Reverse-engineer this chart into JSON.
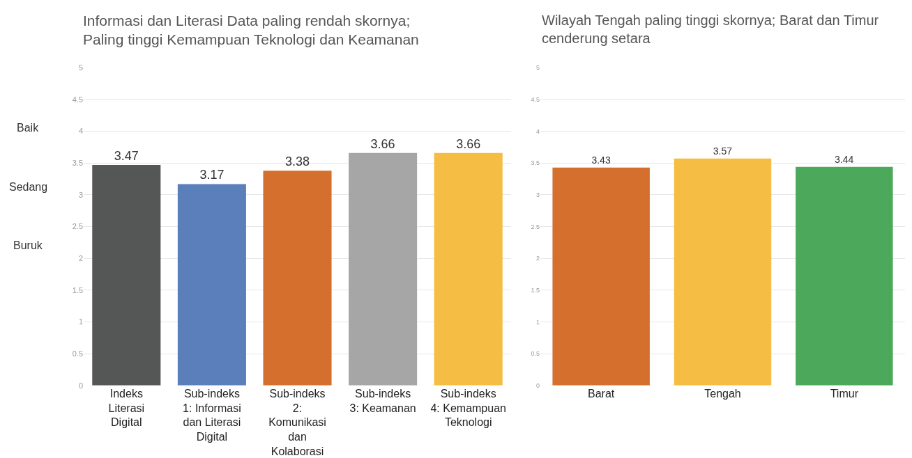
{
  "chart_data": [
    {
      "type": "bar",
      "title": "Informasi dan Literasi Data paling rendah skornya; Paling tinggi Kemampuan Teknologi dan Keamanan",
      "categories": [
        "Indeks Literasi Digital",
        "Sub-indeks 1: Informasi dan Literasi Digital",
        "Sub-indeks 2: Komunikasi dan Kolaborasi",
        "Sub-indeks 3: Keamanan",
        "Sub-indeks 4: Kemampuan Teknologi"
      ],
      "values": [
        3.47,
        3.17,
        3.38,
        3.66,
        3.66
      ],
      "colors": [
        "#555756",
        "#5a7fba",
        "#d46f2e",
        "#a6a6a7",
        "#f5bd43"
      ],
      "ylim": [
        0,
        5
      ],
      "yticks": [
        0,
        0.5,
        1,
        1.5,
        2,
        2.5,
        3,
        3.5,
        4,
        4.5,
        5
      ],
      "grid": "y",
      "data_labels": true,
      "annotations": [
        "Baik",
        "Sedang",
        "Buruk"
      ]
    },
    {
      "type": "bar",
      "title": "Wilayah Tengah paling tinggi skornya; Barat dan Timur cenderung setara",
      "categories": [
        "Barat",
        "Tengah",
        "Timur"
      ],
      "values": [
        3.43,
        3.57,
        3.44
      ],
      "colors": [
        "#d46f2e",
        "#f5bd43",
        "#4ca85a"
      ],
      "ylim": [
        0,
        5
      ],
      "yticks": [
        0,
        0.5,
        1,
        1.5,
        2,
        2.5,
        3,
        3.5,
        4,
        4.5,
        5
      ],
      "grid": "y",
      "data_labels": true
    }
  ]
}
